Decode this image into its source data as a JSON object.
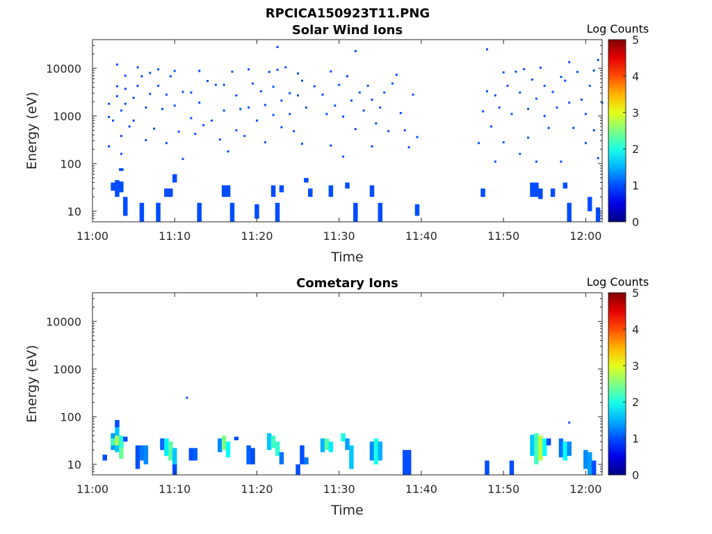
{
  "figure_title": "RPCICA150923T11.PNG",
  "chart_data": [
    {
      "type": "heatmap",
      "title": "Solar Wind Ions",
      "xlabel": "Time",
      "ylabel": "Energy (eV)",
      "y_scale": "log",
      "ylim": [
        6,
        40000
      ],
      "xlim_minutes": [
        0,
        62
      ],
      "x_ticks": [
        "11:00",
        "11:10",
        "11:20",
        "11:30",
        "11:40",
        "11:50",
        "12:00"
      ],
      "y_ticks": [
        "10",
        "100",
        "1000",
        "10000"
      ],
      "colorbar": {
        "label": "Log Counts",
        "range": [
          0,
          5
        ],
        "ticks": [
          "0",
          "1",
          "2",
          "3",
          "4",
          "5"
        ]
      },
      "data_gap": [
        "11:40",
        "11:47"
      ],
      "cells": [
        [
          "11:02",
          1800,
          1
        ],
        [
          "11:02",
          950,
          1
        ],
        [
          "11:02",
          230,
          1
        ],
        [
          "11:02.5",
          800,
          1
        ],
        [
          "11:03",
          12000,
          1
        ],
        [
          "11:03",
          4200,
          1
        ],
        [
          "11:03",
          2600,
          1
        ],
        [
          "11:03.5",
          1300,
          1
        ],
        [
          "11:03.5",
          380,
          1
        ],
        [
          "11:03.5",
          160,
          1
        ],
        [
          "11:04",
          7000,
          1
        ],
        [
          "11:04",
          3700,
          1
        ],
        [
          "11:04",
          1800,
          1
        ],
        [
          "11:04.5",
          600,
          1
        ],
        [
          "11:05",
          2400,
          1
        ],
        [
          "11:05",
          800,
          1
        ],
        [
          "11:05.5",
          10500,
          1
        ],
        [
          "11:05.5",
          4300,
          1
        ],
        [
          "11:06",
          6800,
          1
        ],
        [
          "11:06.5",
          1500,
          1
        ],
        [
          "11:06.5",
          310,
          1
        ],
        [
          "11:07",
          8000,
          1
        ],
        [
          "11:07",
          2900,
          1
        ],
        [
          "11:07.5",
          540,
          1
        ],
        [
          "11:08",
          9500,
          1
        ],
        [
          "11:08",
          4300,
          1
        ],
        [
          "11:08.5",
          1400,
          1
        ],
        [
          "11:09",
          270,
          1
        ],
        [
          "11:09",
          2800,
          1
        ],
        [
          "11:09.5",
          6800,
          1
        ],
        [
          "11:10",
          8800,
          1
        ],
        [
          "11:10",
          1650,
          1
        ],
        [
          "11:10.5",
          470,
          1
        ],
        [
          "11:11",
          3200,
          1
        ],
        [
          "11:11",
          125,
          1
        ],
        [
          "11:12",
          3100,
          1
        ],
        [
          "11:12",
          900,
          1
        ],
        [
          "11:12.5",
          420,
          1
        ],
        [
          "11:13",
          8800,
          1
        ],
        [
          "11:13",
          1900,
          1
        ],
        [
          "11:13.5",
          640,
          1
        ],
        [
          "11:14",
          5400,
          1
        ],
        [
          "11:14.5",
          800,
          1
        ],
        [
          "11:15",
          4500,
          1
        ],
        [
          "11:15.5",
          320,
          1
        ],
        [
          "11:16",
          4500,
          1
        ],
        [
          "11:16",
          1300,
          1
        ],
        [
          "11:16.5",
          180,
          1
        ],
        [
          "11:17",
          8500,
          1
        ],
        [
          "11:17.5",
          2700,
          1
        ],
        [
          "11:17.5",
          500,
          1
        ],
        [
          "11:18",
          1400,
          1
        ],
        [
          "11:18.5",
          380,
          1
        ],
        [
          "11:19",
          9500,
          1
        ],
        [
          "11:19",
          1500,
          1
        ],
        [
          "11:19.5",
          4800,
          1
        ],
        [
          "11:20",
          800,
          1
        ],
        [
          "11:20.5",
          3300,
          1
        ],
        [
          "11:21",
          1700,
          1
        ],
        [
          "11:21",
          280,
          1
        ],
        [
          "11:21.5",
          8400,
          1
        ],
        [
          "11:22",
          4100,
          1
        ],
        [
          "11:22",
          1050,
          1
        ],
        [
          "11:22.5",
          28000,
          1
        ],
        [
          "11:22.5",
          9300,
          1
        ],
        [
          "11:23",
          2100,
          1
        ],
        [
          "11:23",
          580,
          1
        ],
        [
          "11:23.5",
          10500,
          1
        ],
        [
          "11:24",
          3000,
          1
        ],
        [
          "11:24",
          1100,
          1
        ],
        [
          "11:24.5",
          480,
          1
        ],
        [
          "11:25",
          7800,
          1
        ],
        [
          "11:25",
          2700,
          1
        ],
        [
          "11:25.5",
          5500,
          1
        ],
        [
          "11:25.5",
          260,
          1
        ],
        [
          "11:26",
          1500,
          1
        ],
        [
          "11:27",
          4200,
          1
        ],
        [
          "11:28",
          2800,
          1
        ],
        [
          "11:28.5",
          1100,
          1
        ],
        [
          "11:29",
          8600,
          1
        ],
        [
          "11:29",
          240,
          1
        ],
        [
          "11:29.5",
          1650,
          1
        ],
        [
          "11:30",
          4500,
          1
        ],
        [
          "11:30.5",
          970,
          1
        ],
        [
          "11:30.5",
          140,
          1
        ],
        [
          "11:31",
          6800,
          1
        ],
        [
          "11:31.5",
          2100,
          1
        ],
        [
          "11:32",
          23000,
          1
        ],
        [
          "11:32",
          530,
          1
        ],
        [
          "11:32.5",
          3100,
          1
        ],
        [
          "11:33",
          1300,
          1
        ],
        [
          "11:33.5",
          4300,
          1
        ],
        [
          "11:34",
          2200,
          1
        ],
        [
          "11:34",
          230,
          1
        ],
        [
          "11:34.5",
          700,
          1
        ],
        [
          "11:35",
          1500,
          1
        ],
        [
          "11:35.5",
          3100,
          1
        ],
        [
          "11:36",
          480,
          1
        ],
        [
          "11:36.5",
          4800,
          1
        ],
        [
          "11:37",
          7300,
          1
        ],
        [
          "11:37.5",
          1150,
          1
        ],
        [
          "11:38",
          500,
          1
        ],
        [
          "11:38.5",
          220,
          1
        ],
        [
          "11:39",
          2800,
          1
        ],
        [
          "11:39.5",
          360,
          1
        ],
        [
          "11:47",
          270,
          1
        ],
        [
          "11:47.5",
          1250,
          1
        ],
        [
          "11:48",
          3300,
          1
        ],
        [
          "11:48",
          25000,
          1
        ],
        [
          "11:48.5",
          600,
          1
        ],
        [
          "11:49",
          2700,
          1
        ],
        [
          "11:49",
          110,
          1
        ],
        [
          "11:49.5",
          1500,
          1
        ],
        [
          "11:50",
          8200,
          1
        ],
        [
          "11:50",
          280,
          1
        ],
        [
          "11:50.5",
          4300,
          1
        ],
        [
          "11:51",
          1100,
          1
        ],
        [
          "11:51.5",
          8500,
          1
        ],
        [
          "11:52",
          3100,
          1
        ],
        [
          "11:52",
          160,
          1
        ],
        [
          "11:52.5",
          9600,
          1
        ],
        [
          "11:53",
          1400,
          1
        ],
        [
          "11:53",
          350,
          1
        ],
        [
          "11:53.5",
          5800,
          1
        ],
        [
          "11:54",
          2300,
          1
        ],
        [
          "11:54",
          110,
          1
        ],
        [
          "11:54.5",
          10300,
          1
        ],
        [
          "11:55",
          4300,
          1
        ],
        [
          "11:55",
          1000,
          1
        ],
        [
          "11:55.5",
          560,
          1
        ],
        [
          "11:56",
          3200,
          1
        ],
        [
          "11:56.5",
          1500,
          1
        ],
        [
          "11:57",
          6600,
          1
        ],
        [
          "11:57",
          110,
          1
        ],
        [
          "11:57.5",
          5500,
          1
        ],
        [
          "11:58",
          13500,
          1
        ],
        [
          "11:58",
          1900,
          1
        ],
        [
          "11:58.5",
          560,
          1
        ],
        [
          "11:59",
          8400,
          1
        ],
        [
          "11:59.5",
          2200,
          1
        ],
        [
          "12:00",
          270,
          1
        ],
        [
          "12:00",
          1100,
          1
        ],
        [
          "12:00.5",
          4300,
          1
        ],
        [
          "12:01",
          9000,
          1
        ],
        [
          "12:01",
          500,
          1
        ],
        [
          "12:01.5",
          15000,
          1
        ],
        [
          "12:01.5",
          130,
          1
        ],
        [
          "12:02",
          1900,
          1
        ]
      ],
      "column_spans": [
        [
          "11:02.5",
          27,
          40,
          1
        ],
        [
          "11:03",
          20,
          45,
          1
        ],
        [
          "11:03.5",
          25,
          42,
          1
        ],
        [
          "11:04",
          8,
          20,
          1
        ],
        [
          "11:03.5",
          70,
          80,
          1
        ],
        [
          "11:06",
          6,
          15,
          1
        ],
        [
          "11:08",
          6,
          15,
          1
        ],
        [
          "11:09",
          20,
          30,
          1
        ],
        [
          "11:09.5",
          20,
          30,
          1
        ],
        [
          "11:10",
          40,
          60,
          1
        ],
        [
          "11:13",
          6,
          15,
          1
        ],
        [
          "11:16",
          20,
          35,
          1
        ],
        [
          "11:16.5",
          20,
          35,
          1
        ],
        [
          "11:17",
          6,
          15,
          1
        ],
        [
          "11:20",
          7,
          14,
          1
        ],
        [
          "11:22",
          20,
          35,
          1
        ],
        [
          "11:22.5",
          6,
          15,
          1
        ],
        [
          "11:23",
          25,
          35,
          1
        ],
        [
          "11:26",
          40,
          50,
          1
        ],
        [
          "11:26.5",
          20,
          30,
          1
        ],
        [
          "11:29",
          20,
          35,
          1
        ],
        [
          "11:31",
          30,
          40,
          1
        ],
        [
          "11:32",
          6,
          15,
          1
        ],
        [
          "11:34",
          20,
          35,
          1
        ],
        [
          "11:35",
          6,
          15,
          1
        ],
        [
          "11:39.5",
          8,
          14,
          1
        ],
        [
          "11:47.5",
          20,
          30,
          1
        ],
        [
          "11:53.5",
          20,
          40,
          1
        ],
        [
          "11:54",
          20,
          40,
          1
        ],
        [
          "11:54.5",
          18,
          30,
          1
        ],
        [
          "11:56",
          20,
          30,
          1
        ],
        [
          "11:57.5",
          30,
          40,
          1
        ],
        [
          "11:58",
          6,
          15,
          1
        ],
        [
          "12:00.5",
          10,
          20,
          1
        ],
        [
          "12:01.5",
          6,
          12,
          1
        ]
      ]
    },
    {
      "type": "heatmap",
      "title": "Cometary Ions",
      "xlabel": "Time",
      "ylabel": "Energy (eV)",
      "y_scale": "log",
      "ylim": [
        6,
        40000
      ],
      "xlim_minutes": [
        0,
        62
      ],
      "x_ticks": [
        "11:00",
        "11:10",
        "11:20",
        "11:30",
        "11:40",
        "11:50",
        "12:00"
      ],
      "y_ticks": [
        "10",
        "100",
        "1000",
        "10000"
      ],
      "colorbar": {
        "label": "Log Counts",
        "range": [
          0,
          5
        ],
        "ticks": [
          "0",
          "1",
          "2",
          "3",
          "4",
          "5"
        ]
      },
      "cells": [
        [
          "11:11.5",
          250,
          1
        ],
        [
          "11:58",
          75,
          1
        ]
      ],
      "column_spans": [
        [
          "11:01.5",
          12,
          16,
          1
        ],
        [
          "11:02.5",
          20,
          45,
          1.4
        ],
        [
          "11:02.5",
          25,
          35,
          2.2
        ],
        [
          "11:03",
          18,
          60,
          1.6
        ],
        [
          "11:03",
          25,
          40,
          2.7
        ],
        [
          "11:03",
          60,
          85,
          1
        ],
        [
          "11:03.5",
          22,
          40,
          2.1
        ],
        [
          "11:03.5",
          13,
          22,
          2.4
        ],
        [
          "11:04",
          30,
          38,
          1
        ],
        [
          "11:05.5",
          8,
          25,
          1
        ],
        [
          "11:06",
          12,
          25,
          1.2
        ],
        [
          "11:06.5",
          10,
          25,
          1.3
        ],
        [
          "11:08.5",
          20,
          35,
          1.1
        ],
        [
          "11:09",
          15,
          35,
          1.8
        ],
        [
          "11:09.5",
          12,
          30,
          2.3
        ],
        [
          "11:10",
          10,
          22,
          1.6
        ],
        [
          "11:10",
          6,
          10,
          1
        ],
        [
          "11:12",
          12,
          22,
          1
        ],
        [
          "11:12.5",
          12,
          22,
          1.1
        ],
        [
          "11:15.5",
          18,
          35,
          1.3
        ],
        [
          "11:16",
          20,
          40,
          2.5
        ],
        [
          "11:16.5",
          14,
          30,
          1.9
        ],
        [
          "11:17.5",
          32,
          38,
          1
        ],
        [
          "11:19",
          10,
          25,
          1.1
        ],
        [
          "11:19.5",
          10,
          22,
          1
        ],
        [
          "11:21.5",
          20,
          45,
          1.6
        ],
        [
          "11:22",
          22,
          40,
          2.2
        ],
        [
          "11:22.5",
          15,
          30,
          2.1
        ],
        [
          "11:23",
          10,
          18,
          1.2
        ],
        [
          "11:25",
          6,
          10,
          1
        ],
        [
          "11:25.5",
          10,
          25,
          1
        ],
        [
          "11:26",
          10,
          14,
          1.2
        ],
        [
          "11:28",
          18,
          35,
          1.5
        ],
        [
          "11:28.5",
          20,
          35,
          2.3
        ],
        [
          "11:29",
          18,
          30,
          1.8
        ],
        [
          "11:30.5",
          30,
          45,
          2
        ],
        [
          "11:31",
          20,
          35,
          1.4
        ],
        [
          "11:31.5",
          8,
          25,
          1.6
        ],
        [
          "11:34",
          12,
          30,
          1.3
        ],
        [
          "11:34.5",
          10,
          35,
          2
        ],
        [
          "11:35",
          12,
          30,
          1.5
        ],
        [
          "11:38",
          6,
          20,
          1
        ],
        [
          "11:38.5",
          6,
          20,
          1
        ],
        [
          "11:48",
          6,
          12,
          1
        ],
        [
          "11:51",
          6,
          12,
          1
        ],
        [
          "11:53.5",
          15,
          42,
          1.6
        ],
        [
          "11:54",
          10,
          45,
          2.2
        ],
        [
          "11:54.5",
          12,
          40,
          2.8
        ],
        [
          "11:55",
          15,
          35,
          1.9
        ],
        [
          "11:55.5",
          25,
          35,
          1
        ],
        [
          "11:57",
          14,
          35,
          1.2
        ],
        [
          "11:57.5",
          12,
          30,
          1.9
        ],
        [
          "11:58",
          15,
          30,
          1.3
        ],
        [
          "12:00",
          8,
          20,
          1.3
        ],
        [
          "12:00.5",
          6,
          18,
          1.4
        ],
        [
          "12:01",
          6,
          12,
          1
        ]
      ]
    }
  ]
}
